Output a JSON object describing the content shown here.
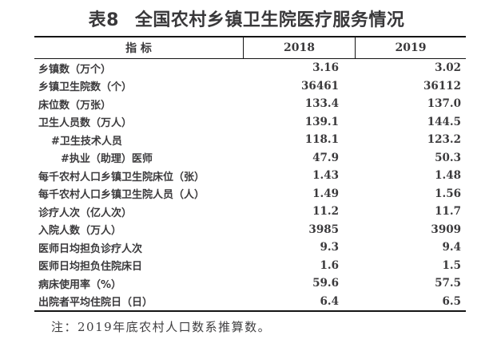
{
  "title": {
    "prefix": "表8",
    "text": "全国农村乡镇卫生院医疗服务情况"
  },
  "colors": {
    "text": "#3a393b",
    "rule": "#141414",
    "background": "#ffffff"
  },
  "table": {
    "header": {
      "indicator": "指 标",
      "year1": "2018",
      "year2": "2019"
    },
    "rows": [
      {
        "label": "乡镇数（万个）",
        "indent": 0,
        "v2018": "3.16",
        "v2019": "3.02"
      },
      {
        "label": "乡镇卫生院数（个）",
        "indent": 0,
        "v2018": "36461",
        "v2019": "36112"
      },
      {
        "label": "床位数（万张）",
        "indent": 0,
        "v2018": "133.4",
        "v2019": "137.0"
      },
      {
        "label": "卫生人员数（万人）",
        "indent": 0,
        "v2018": "139.1",
        "v2019": "144.5"
      },
      {
        "label": "#卫生技术人员",
        "indent": 1,
        "v2018": "118.1",
        "v2019": "123.2"
      },
      {
        "label": "#执业（助理）医师",
        "indent": 2,
        "v2018": "47.9",
        "v2019": "50.3"
      },
      {
        "label": "每千农村人口乡镇卫生院床位（张）",
        "indent": 0,
        "v2018": "1.43",
        "v2019": "1.48"
      },
      {
        "label": "每千农村人口乡镇卫生院人员（人）",
        "indent": 0,
        "v2018": "1.49",
        "v2019": "1.56"
      },
      {
        "label": "诊疗人次（亿人次）",
        "indent": 0,
        "v2018": "11.2",
        "v2019": "11.7"
      },
      {
        "label": "入院人数（万人）",
        "indent": 0,
        "v2018": "3985",
        "v2019": "3909"
      },
      {
        "label": "医师日均担负诊疗人次",
        "indent": 0,
        "v2018": "9.3",
        "v2019": "9.4"
      },
      {
        "label": "医师日均担负住院床日",
        "indent": 0,
        "v2018": "1.6",
        "v2019": "1.5"
      },
      {
        "label": "病床使用率（%）",
        "indent": 0,
        "v2018": "59.6",
        "v2019": "57.5"
      },
      {
        "label": "出院者平均住院日（日）",
        "indent": 0,
        "v2018": "6.4",
        "v2019": "6.5"
      }
    ]
  },
  "note": "注：2019年底农村人口数系推算数。"
}
